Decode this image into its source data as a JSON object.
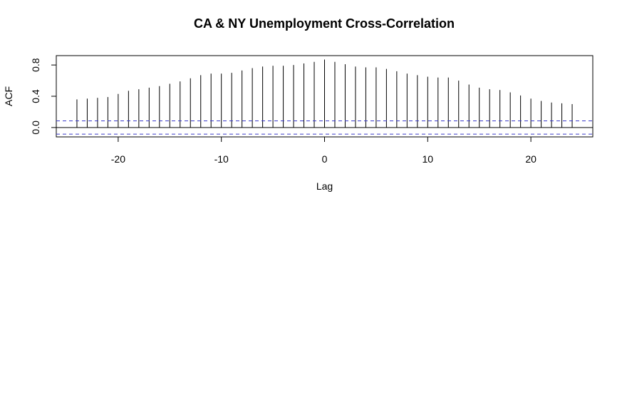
{
  "chart_data": {
    "type": "bar",
    "title": "CA & NY Unemployment Cross-Correlation",
    "xlabel": "Lag",
    "ylabel": "ACF",
    "xlim": [
      -26,
      26
    ],
    "ylim": [
      -0.12,
      0.92
    ],
    "x_ticks": [
      -20,
      -10,
      0,
      10,
      20
    ],
    "x_tick_labels": [
      "-20",
      "-10",
      "0",
      "10",
      "20"
    ],
    "y_ticks": [
      0.0,
      0.4,
      0.8
    ],
    "y_tick_labels": [
      "0.0",
      "0.4",
      "0.8"
    ],
    "lags": [
      -24,
      -23,
      -22,
      -21,
      -20,
      -19,
      -18,
      -17,
      -16,
      -15,
      -14,
      -13,
      -12,
      -11,
      -10,
      -9,
      -8,
      -7,
      -6,
      -5,
      -4,
      -3,
      -2,
      -1,
      0,
      1,
      2,
      3,
      4,
      5,
      6,
      7,
      8,
      9,
      10,
      11,
      12,
      13,
      14,
      15,
      16,
      17,
      18,
      19,
      20,
      21,
      22,
      23,
      24
    ],
    "values": [
      0.36,
      0.37,
      0.38,
      0.39,
      0.43,
      0.47,
      0.49,
      0.51,
      0.53,
      0.56,
      0.59,
      0.63,
      0.67,
      0.69,
      0.69,
      0.7,
      0.73,
      0.76,
      0.78,
      0.79,
      0.79,
      0.8,
      0.82,
      0.84,
      0.87,
      0.84,
      0.81,
      0.78,
      0.77,
      0.77,
      0.75,
      0.72,
      0.69,
      0.67,
      0.65,
      0.64,
      0.64,
      0.6,
      0.55,
      0.51,
      0.49,
      0.48,
      0.45,
      0.41,
      0.37,
      0.34,
      0.32,
      0.31,
      0.3
    ],
    "confidence_bound": 0.085,
    "grid": false,
    "colors": {
      "bars": "#000000",
      "confidence_lines": "#3a3ac8",
      "zero_line": "#000000",
      "axes": "#000000"
    }
  }
}
